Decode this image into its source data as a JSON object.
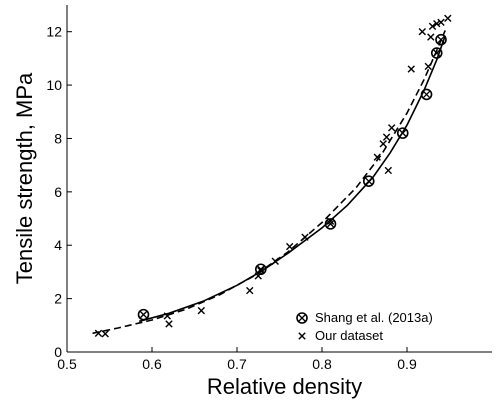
{
  "chart_data": {
    "type": "scatter",
    "xlabel": "Relative density",
    "ylabel": "Tensile strength, MPa",
    "xlim": [
      0.5,
      1.0
    ],
    "ylim": [
      0,
      13
    ],
    "xticks": [
      0.5,
      0.6,
      0.7,
      0.8,
      0.9
    ],
    "yticks": [
      0,
      2,
      4,
      6,
      8,
      10,
      12
    ],
    "legend_position": "bottom-right",
    "grid": false,
    "series": [
      {
        "name": "Shang et al. (2013a)",
        "marker": "circle-x",
        "points": [
          [
            0.59,
            1.4
          ],
          [
            0.728,
            3.1
          ],
          [
            0.81,
            4.8
          ],
          [
            0.855,
            6.4
          ],
          [
            0.895,
            8.2
          ],
          [
            0.923,
            9.65
          ],
          [
            0.935,
            11.2
          ],
          [
            0.94,
            11.7
          ]
        ]
      },
      {
        "name": "Our dataset",
        "marker": "x",
        "points": [
          [
            0.537,
            0.7
          ],
          [
            0.545,
            0.68
          ],
          [
            0.618,
            1.35
          ],
          [
            0.62,
            1.05
          ],
          [
            0.658,
            1.55
          ],
          [
            0.715,
            2.3
          ],
          [
            0.725,
            2.85
          ],
          [
            0.728,
            3.05
          ],
          [
            0.745,
            3.4
          ],
          [
            0.762,
            3.95
          ],
          [
            0.78,
            4.3
          ],
          [
            0.81,
            4.9
          ],
          [
            0.865,
            7.3
          ],
          [
            0.872,
            7.8
          ],
          [
            0.876,
            8.05
          ],
          [
            0.878,
            6.8
          ],
          [
            0.882,
            8.4
          ],
          [
            0.905,
            10.6
          ],
          [
            0.918,
            12.0
          ],
          [
            0.925,
            10.7
          ],
          [
            0.928,
            11.8
          ],
          [
            0.93,
            12.2
          ],
          [
            0.935,
            12.3
          ],
          [
            0.94,
            12.35
          ],
          [
            0.948,
            12.5
          ]
        ]
      }
    ],
    "fit_lines": [
      {
        "style": "solid",
        "points": [
          [
            0.585,
            1.15
          ],
          [
            0.62,
            1.45
          ],
          [
            0.66,
            1.9
          ],
          [
            0.7,
            2.5
          ],
          [
            0.73,
            3.05
          ],
          [
            0.76,
            3.7
          ],
          [
            0.8,
            4.65
          ],
          [
            0.83,
            5.5
          ],
          [
            0.86,
            6.55
          ],
          [
            0.88,
            7.45
          ],
          [
            0.9,
            8.5
          ],
          [
            0.92,
            9.8
          ],
          [
            0.935,
            10.95
          ],
          [
            0.945,
            11.85
          ]
        ]
      },
      {
        "style": "dashed",
        "points": [
          [
            0.53,
            0.7
          ],
          [
            0.56,
            0.9
          ],
          [
            0.6,
            1.2
          ],
          [
            0.64,
            1.6
          ],
          [
            0.68,
            2.15
          ],
          [
            0.72,
            2.85
          ],
          [
            0.76,
            3.75
          ],
          [
            0.8,
            4.85
          ],
          [
            0.84,
            6.15
          ],
          [
            0.87,
            7.4
          ],
          [
            0.9,
            8.95
          ],
          [
            0.92,
            10.2
          ],
          [
            0.935,
            11.3
          ],
          [
            0.945,
            12.05
          ]
        ]
      }
    ]
  }
}
